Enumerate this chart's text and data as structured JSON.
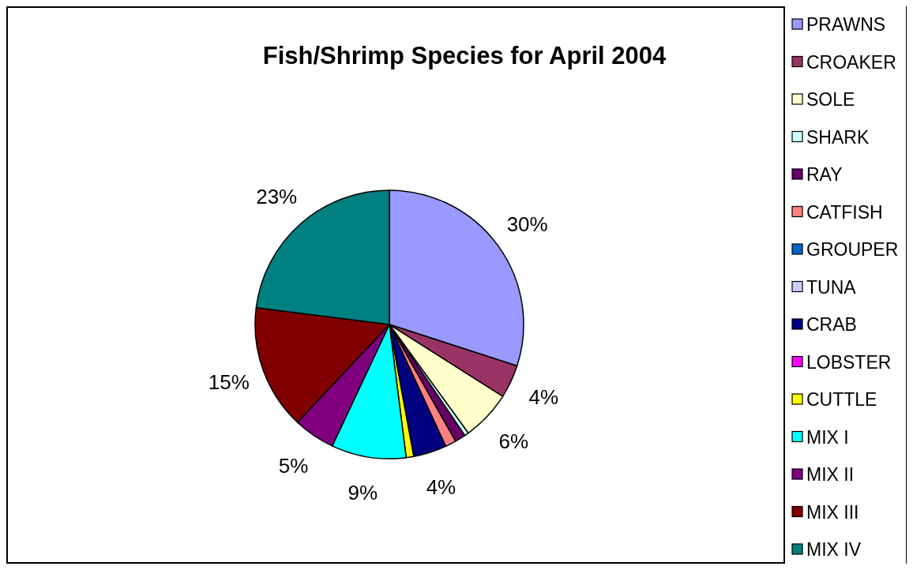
{
  "chart_data": {
    "type": "pie",
    "title": "Fish/Shrimp Species for April 2004",
    "categories": [
      "PRAWNS",
      "CROAKER",
      "SOLE",
      "SHARK",
      "RAY",
      "CATFISH",
      "GROUPER",
      "TUNA",
      "CRAB",
      "LOBSTER",
      "CUTTLE",
      "MIX I",
      "MIX II",
      "MIX III",
      "MIX IV"
    ],
    "values": [
      30,
      4,
      6,
      0.5,
      1.3,
      1.3,
      0,
      0,
      4,
      0,
      0.9,
      9,
      5,
      15,
      23
    ],
    "value_labels": [
      "30%",
      "4%",
      "6%",
      null,
      null,
      null,
      null,
      null,
      "4%",
      null,
      null,
      "9%",
      "5%",
      "15%",
      "23%"
    ],
    "colors": [
      "#9999ff",
      "#993366",
      "#ffffcc",
      "#ccffff",
      "#660066",
      "#ff8080",
      "#0066cc",
      "#ccccff",
      "#000080",
      "#ff00ff",
      "#ffff00",
      "#00ffff",
      "#800080",
      "#800000",
      "#008080"
    ],
    "legend": "right"
  }
}
